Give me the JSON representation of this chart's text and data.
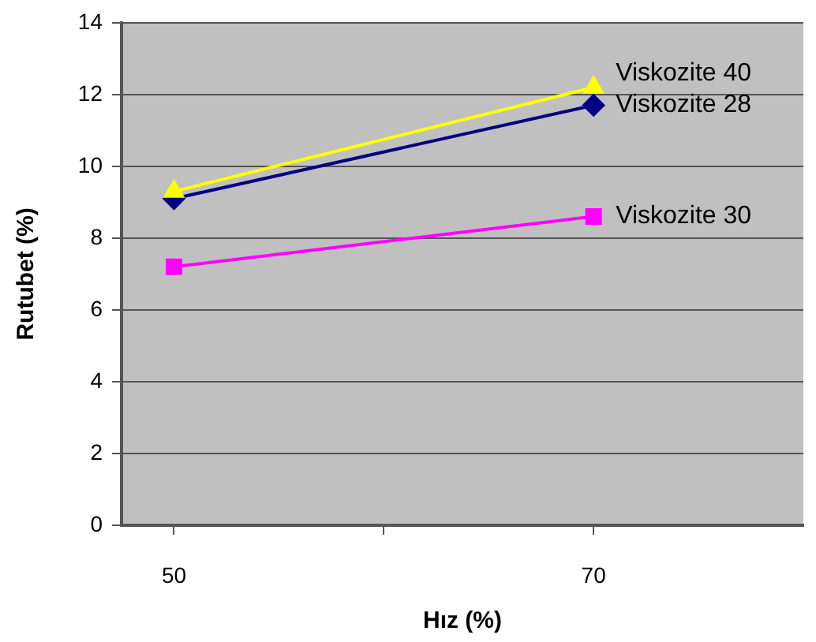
{
  "chart_data": {
    "type": "line",
    "xlabel": "Hız (%)",
    "ylabel": "Rutubet (%)",
    "x": [
      50,
      70
    ],
    "series": [
      {
        "name": "Viskozite 40",
        "color": "#ffff00",
        "values": [
          9.3,
          12.2
        ],
        "marker": "triangle"
      },
      {
        "name": "Viskozite 28",
        "color": "#000080",
        "values": [
          9.1,
          11.7
        ],
        "marker": "diamond"
      },
      {
        "name": "Viskozite 30",
        "color": "#ff00ff",
        "values": [
          7.2,
          8.6
        ],
        "marker": "square"
      }
    ],
    "xlim": [
      47.5,
      80
    ],
    "xticks": [
      50,
      {
        "value": 60,
        "label": null
      },
      70
    ],
    "ylim": [
      0,
      14
    ],
    "yticks": [
      0,
      2,
      4,
      6,
      8,
      10,
      12,
      14
    ],
    "grid": "y",
    "legend": false
  }
}
